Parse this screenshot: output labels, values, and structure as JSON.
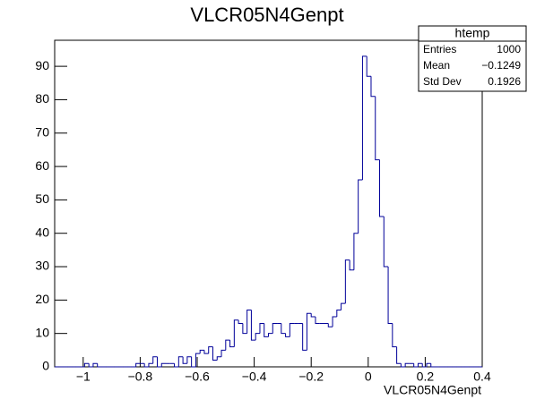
{
  "chart_data": {
    "type": "histogram",
    "title": "VLCR05N4Genpt",
    "xlabel": "VLCR05N4Genpt",
    "color": "#000099",
    "bins": [
      -1.1,
      -1.085,
      -1.07,
      -1.055,
      -1.04,
      -1.025,
      -1.01,
      -0.995,
      -0.98,
      -0.965,
      -0.95,
      -0.935,
      -0.92,
      -0.905,
      -0.89,
      -0.875,
      -0.86,
      -0.845,
      -0.83,
      -0.815,
      -0.8,
      -0.785,
      -0.77,
      -0.755,
      -0.74,
      -0.725,
      -0.71,
      -0.695,
      -0.68,
      -0.665,
      -0.65,
      -0.635,
      -0.62,
      -0.605,
      -0.59,
      -0.575,
      -0.56,
      -0.545,
      -0.53,
      -0.515,
      -0.5,
      -0.485,
      -0.47,
      -0.455,
      -0.44,
      -0.425,
      -0.41,
      -0.395,
      -0.38,
      -0.365,
      -0.35,
      -0.335,
      -0.32,
      -0.305,
      -0.29,
      -0.275,
      -0.26,
      -0.245,
      -0.23,
      -0.215,
      -0.2,
      -0.185,
      -0.17,
      -0.155,
      -0.14,
      -0.125,
      -0.11,
      -0.095,
      -0.08,
      -0.065,
      -0.05,
      -0.035,
      -0.02,
      -0.005,
      0.01,
      0.025,
      0.04,
      0.055,
      0.07,
      0.085,
      0.1,
      0.115,
      0.13,
      0.145,
      0.16,
      0.175,
      0.19,
      0.205,
      0.22,
      0.235,
      0.25,
      0.265,
      0.28,
      0.295,
      0.31,
      0.325,
      0.34,
      0.355,
      0.37,
      0.385,
      0.4
    ],
    "values": [
      0,
      0,
      0,
      0,
      0,
      0,
      0,
      1,
      0,
      1,
      0,
      0,
      0,
      0,
      0,
      0,
      0,
      0,
      0,
      1,
      1,
      0,
      1,
      3,
      0,
      1,
      1,
      1,
      0,
      3,
      1,
      3,
      0,
      4,
      5,
      4,
      6,
      2,
      3,
      5,
      8,
      6,
      14,
      13,
      10,
      17,
      8,
      10,
      13,
      9,
      10,
      13,
      13,
      10,
      9,
      13,
      13,
      13,
      5,
      16,
      15,
      13,
      13,
      13,
      12,
      15,
      17,
      19,
      32,
      29,
      40,
      56,
      93,
      87,
      81,
      62,
      45,
      30,
      13,
      6,
      1,
      0,
      1,
      1,
      0,
      1,
      0,
      1,
      0,
      0,
      0,
      0,
      0,
      0,
      0,
      0,
      0,
      0,
      0,
      0
    ],
    "xlim": [
      -1.1,
      0.4
    ],
    "ylim": [
      0,
      97.8
    ],
    "xticks": [
      {
        "value": -1,
        "label": "−1"
      },
      {
        "value": -0.8,
        "label": "−0.8"
      },
      {
        "value": -0.6,
        "label": "−0.6"
      },
      {
        "value": -0.4,
        "label": "−0.4"
      },
      {
        "value": -0.2,
        "label": "−0.2"
      },
      0,
      0.2,
      0.4
    ],
    "yticks": [
      0,
      10,
      20,
      30,
      40,
      50,
      60,
      70,
      80,
      90
    ],
    "stats": {
      "title": "htemp",
      "rows": [
        [
          "Entries",
          "1000"
        ],
        [
          "Mean",
          "−0.1249"
        ],
        [
          "Std Dev",
          "0.1926"
        ]
      ]
    }
  }
}
